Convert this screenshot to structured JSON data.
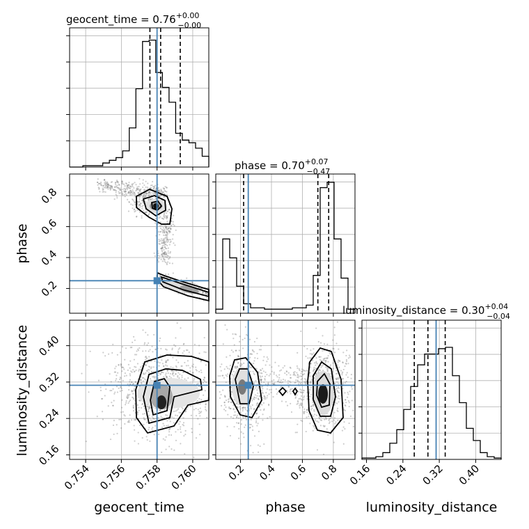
{
  "chart_data": {
    "type": "corner",
    "parameters": [
      "geocent_time",
      "phase",
      "luminosity_distance"
    ],
    "truths": {
      "geocent_time": 0.758,
      "phase": 0.25,
      "luminosity_distance": 0.313
    },
    "titles": [
      {
        "param": "geocent_time",
        "name": "geocent_time",
        "value": "0.76",
        "plus": "+0.00",
        "minus": "−0.00"
      },
      {
        "param": "phase",
        "name": "phase",
        "value": "0.70",
        "plus": "+0.07",
        "minus": "−0.47"
      },
      {
        "param": "luminosity_distance",
        "name": "luminosity_distance",
        "value": "0.30",
        "plus": "+0.04",
        "minus": "−0.04"
      }
    ],
    "ranges": {
      "geocent_time": [
        0.7531,
        0.7609
      ],
      "phase": [
        0.04,
        0.94
      ],
      "luminosity_distance": [
        0.15,
        0.456
      ]
    },
    "ticks": {
      "geocent_time": [
        "0.754",
        "0.756",
        "0.758",
        "0.760"
      ],
      "phase_y": [
        "0.2",
        "0.4",
        "0.6",
        "0.8"
      ],
      "phase_x": [
        "0.2",
        "0.4",
        "0.6",
        "0.8"
      ],
      "luminosity_distance": [
        "0.16",
        "0.24",
        "0.32",
        "0.40"
      ]
    },
    "axis_labels": {
      "geocent_time": "geocent_time",
      "phase": "phase",
      "luminosity_distance": "luminosity_distance"
    },
    "histograms": {
      "geocent_time": {
        "quantiles": [
          0.7576,
          0.7582,
          0.7593
        ],
        "relative_heights": [
          0,
          0,
          0.01,
          0.01,
          0.01,
          0.03,
          0.05,
          0.07,
          0.12,
          0.29,
          0.58,
          0.93,
          0.94,
          0.7,
          0.59,
          0.48,
          0.25,
          0.2,
          0.18,
          0.14,
          0.08
        ]
      },
      "phase": {
        "quantiles": [
          0.22,
          0.7,
          0.77
        ],
        "relative_heights": [
          0.03,
          0.55,
          0.41,
          0.2,
          0.07,
          0.04,
          0.04,
          0.03,
          0.03,
          0.03,
          0.03,
          0.04,
          0.04,
          0.06,
          0.28,
          0.93,
          0.97,
          0.55,
          0.26,
          0.03
        ]
      },
      "luminosity_distance": {
        "quantiles": [
          0.265,
          0.295,
          0.333
        ],
        "relative_heights": [
          0.01,
          0.01,
          0.02,
          0.05,
          0.12,
          0.22,
          0.37,
          0.54,
          0.7,
          0.78,
          0.78,
          0.82,
          0.83,
          0.62,
          0.42,
          0.23,
          0.14,
          0.05,
          0.02,
          0.01
        ]
      }
    },
    "density_modes": {
      "phase_vs_geocent_time": [
        {
          "x": 0.758,
          "y": 0.735
        },
        {
          "x": 0.759,
          "y": 0.17
        }
      ],
      "luminosity_distance_vs_geocent_time": [
        {
          "x": 0.7581,
          "y": 0.29
        }
      ],
      "luminosity_distance_vs_phase": [
        {
          "x": 0.22,
          "y": 0.31
        },
        {
          "x": 0.73,
          "y": 0.3
        }
      ]
    },
    "grid": true,
    "legend": "none"
  }
}
